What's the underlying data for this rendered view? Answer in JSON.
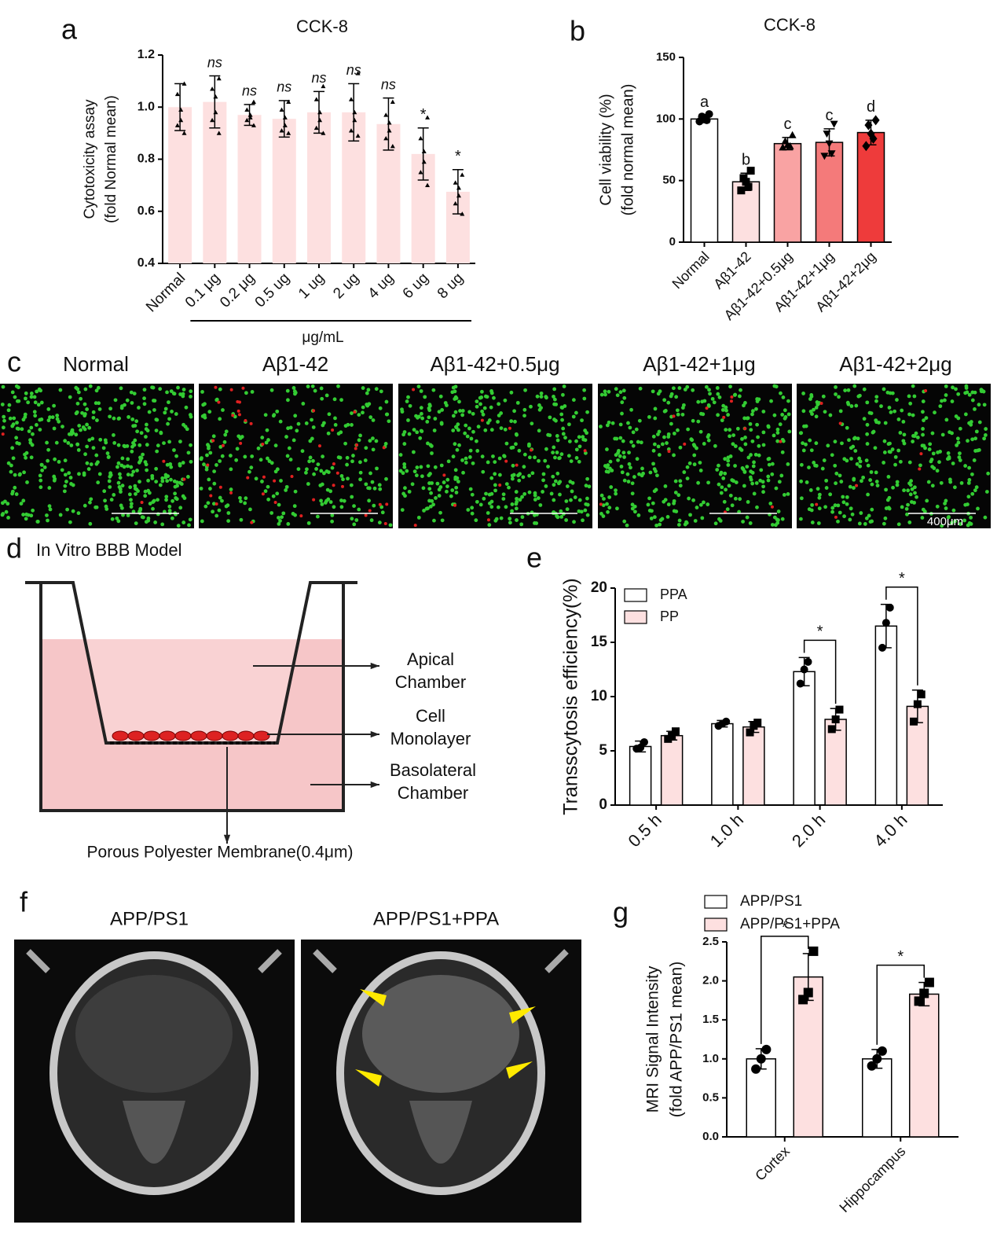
{
  "panel_letters": [
    "a",
    "b",
    "c",
    "d",
    "e",
    "f",
    "g"
  ],
  "chart_data": [
    {
      "type": "bar",
      "title": "CCK-8",
      "ylabel": [
        "Cytotoxicity assay",
        "(fold Normal mean)"
      ],
      "xlabel": "μg/mL",
      "categories": [
        "Normal",
        "0.1 μg",
        "0.2 μg",
        "0.5 ug",
        "1 ug",
        "2 ug",
        "4 ug",
        "6 ug",
        "8 ug"
      ],
      "values": [
        1.0,
        1.02,
        0.97,
        0.955,
        0.98,
        0.98,
        0.935,
        0.82,
        0.675
      ],
      "errors": [
        0.09,
        0.1,
        0.04,
        0.07,
        0.08,
        0.11,
        0.1,
        0.1,
        0.085
      ],
      "annotations": [
        null,
        "ns",
        "ns",
        "ns",
        "ns",
        "ns",
        "ns",
        "*",
        "*"
      ],
      "points": [
        [
          1.09,
          1.05,
          0.99,
          0.95,
          0.93,
          0.9
        ],
        [
          1.11,
          1.07,
          1.04,
          0.98,
          0.95,
          0.9
        ],
        [
          1.02,
          0.99,
          0.97,
          0.96,
          0.95,
          0.93
        ],
        [
          1.02,
          0.99,
          0.96,
          0.93,
          0.91,
          0.9
        ],
        [
          1.08,
          1.03,
          0.98,
          0.95,
          0.92,
          0.9
        ],
        [
          1.13,
          1.03,
          0.98,
          0.95,
          0.91,
          0.89
        ],
        [
          1.02,
          0.97,
          0.94,
          0.91,
          0.88,
          0.85
        ],
        [
          0.96,
          0.88,
          0.83,
          0.79,
          0.75,
          0.7
        ],
        [
          0.74,
          0.71,
          0.69,
          0.66,
          0.63,
          0.59
        ]
      ],
      "marker": "triangle",
      "color": "#fde0e0",
      "ylim": [
        0.4,
        1.2
      ],
      "yticks": [
        0.4,
        0.6,
        0.8,
        {
          "value": 1,
          "label": "1.0"
        },
        1.2
      ]
    },
    {
      "type": "bar",
      "title": "CCK-8",
      "ylabel": [
        "Cell viability (%)",
        "(fold normal mean)"
      ],
      "categories": [
        "Normal",
        "Aβ1-42",
        "Aβ1-42+0.5μg",
        "Aβ1-42+1μg",
        "Aβ1-42+2μg"
      ],
      "values": [
        100,
        49,
        80,
        81,
        89
      ],
      "errors": [
        3,
        7,
        5,
        11,
        10
      ],
      "annotations": [
        "a",
        "b",
        "c",
        "c",
        "d"
      ],
      "points": [
        [
          104,
          102,
          101,
          99,
          98
        ],
        [
          58,
          52,
          49,
          45,
          42
        ],
        [
          87,
          82,
          79,
          78,
          77
        ],
        [
          96,
          88,
          80,
          72,
          70
        ],
        [
          99,
          95,
          88,
          84,
          78
        ]
      ],
      "markers": [
        "circle",
        "square",
        "triangle",
        "triangle-down",
        "diamond"
      ],
      "colors": [
        "#ffffff",
        "#fde0e0",
        "#f9a3a3",
        "#f47a7a",
        "#ee3b3b"
      ],
      "bar_edge": "#000000",
      "ylim": [
        0,
        150
      ],
      "yticks": [
        0,
        50,
        100,
        150
      ]
    },
    {
      "type": "bar",
      "ylabel": [
        "Transscytosis efficiency(%)"
      ],
      "categories": [
        "0.5 h",
        "1.0 h",
        "2.0 h",
        "4.0 h"
      ],
      "series": [
        {
          "name": "PPA",
          "color": "#ffffff",
          "values": [
            5.4,
            7.5,
            12.3,
            16.5
          ],
          "errors": [
            0.5,
            0.3,
            1.3,
            2.0
          ],
          "marker": "circle",
          "points": [
            [
              5.8,
              5.3,
              5.2
            ],
            [
              7.7,
              7.5,
              7.3
            ],
            [
              13.2,
              12.5,
              11.2
            ],
            [
              18.2,
              16.8,
              14.5
            ]
          ]
        },
        {
          "name": "PP",
          "color": "#fde0e0",
          "values": [
            6.4,
            7.2,
            7.9,
            9.1
          ],
          "errors": [
            0.4,
            0.5,
            1.0,
            1.5
          ],
          "marker": "square",
          "points": [
            [
              6.8,
              6.4,
              6.1
            ],
            [
              7.6,
              7.3,
              6.7
            ],
            [
              8.8,
              7.9,
              7.0
            ],
            [
              10.2,
              9.3,
              7.7
            ]
          ]
        }
      ],
      "annotations": [
        null,
        null,
        "*",
        "*"
      ],
      "bar_edge": "#000000",
      "ylim": [
        0,
        20
      ],
      "yticks": [
        0,
        5,
        10,
        15,
        20
      ]
    },
    {
      "type": "bar",
      "ylabel": [
        "MRI Signal Intensity",
        "(fold APP/PS1 mean)"
      ],
      "categories": [
        "Cortex",
        "Hippocampus"
      ],
      "series": [
        {
          "name": "APP/PS1",
          "color": "#ffffff",
          "values": [
            1.0,
            1.0
          ],
          "errors": [
            0.13,
            0.12
          ],
          "marker": "circle",
          "points": [
            [
              1.12,
              1.0,
              0.87
            ],
            [
              1.1,
              1.0,
              0.91
            ]
          ]
        },
        {
          "name": "APP/PS1+PPA",
          "color": "#fde0e0",
          "values": [
            2.05,
            1.83
          ],
          "errors": [
            0.3,
            0.15
          ],
          "marker": "square",
          "points": [
            [
              2.38,
              1.85,
              1.76
            ],
            [
              1.98,
              1.84,
              1.74
            ]
          ]
        }
      ],
      "annotations": [
        "*",
        "*"
      ],
      "bar_edge": "#000000",
      "ylim": [
        0,
        2.5
      ],
      "yticks": [
        {
          "value": 0,
          "label": "0.0"
        },
        0.5,
        {
          "value": 1,
          "label": "1.0"
        },
        1.5,
        {
          "value": 2,
          "label": "2.0"
        },
        2.5
      ]
    }
  ],
  "micrographs": {
    "labels": [
      "Normal",
      "Aβ1-42",
      "Aβ1-42+0.5μg",
      "Aβ1-42+1μg",
      "Aβ1-42+2μg"
    ],
    "scale_bar": "400μm"
  },
  "bbb_model": {
    "title": "In Vitro BBB Model",
    "labels": [
      [
        "Apical",
        "Chamber"
      ],
      [
        "Cell",
        "Monolayer"
      ],
      [
        "Basolateral",
        "Chamber"
      ]
    ],
    "membrane": "Porous Polyester Membrane(0.4μm)"
  },
  "mri": {
    "labels": [
      "APP/PS1",
      "APP/PS1+PPA"
    ]
  }
}
